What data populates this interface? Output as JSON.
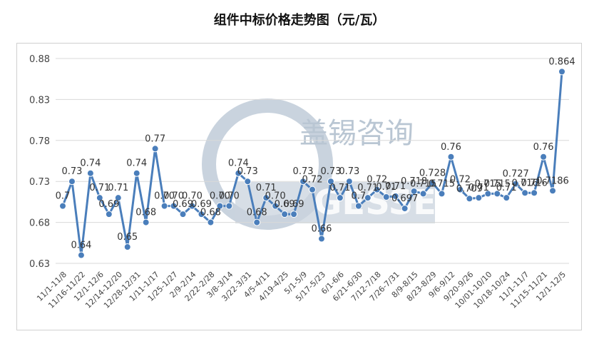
{
  "chart_data": {
    "type": "line",
    "title": "组件中标价格走势图（元/瓦）",
    "ylim": [
      0.63,
      0.88
    ],
    "yticks": [
      "0.63",
      "0.68",
      "0.73",
      "0.78",
      "0.83",
      "0.88"
    ],
    "color": "#4a7ebb",
    "grid": true,
    "legend": "none",
    "xtick_labels": [
      "11/1-11/8",
      "11/16-11/22",
      "12/1-12/6",
      "12/14-12/20",
      "12/28-12/31",
      "1/11-1/17",
      "1/25-1/27",
      "2/9-2/14",
      "2/22-2/28",
      "3/8-3/14",
      "3/22-3/31",
      "4/5-4/11",
      "4/19-4/25",
      "5/1-5/9",
      "5/17-5/23",
      "6/1-6/6",
      "6/21-6/30",
      "7/12-7/18",
      "7/26-7/31",
      "8/9-8/15",
      "8/23-8/29",
      "9/6-9/12",
      "9/20-9/26",
      "10/01-10/10",
      "10/18-10/24",
      "11/1-11/7",
      "11/15-11/21",
      "12/1-12/5"
    ],
    "values": [
      0.7,
      0.73,
      0.64,
      0.74,
      0.71,
      0.69,
      0.71,
      0.65,
      0.74,
      0.68,
      0.77,
      0.7,
      0.7,
      0.69,
      0.7,
      0.69,
      0.68,
      0.7,
      0.7,
      0.74,
      0.73,
      0.68,
      0.71,
      0.7,
      0.69,
      0.69,
      0.73,
      0.72,
      0.66,
      0.73,
      0.71,
      0.73,
      0.7,
      0.71,
      0.72,
      0.711,
      0.712,
      0.697,
      0.718,
      0.715,
      0.728,
      0.715,
      0.76,
      0.72,
      0.709,
      0.71,
      0.715,
      0.715,
      0.71,
      0.727,
      0.716,
      0.716,
      0.76,
      0.7186,
      0.864
    ],
    "data_labels": [
      "0.7",
      "0.73",
      "0.64",
      "0.74",
      "0.71",
      "0.69",
      "0.71",
      "0.65",
      "0.74",
      "0.68",
      "0.77",
      "0.70",
      "0.70",
      "0.69",
      "0.70",
      "0.69",
      "0.68",
      "0.70",
      "0.70",
      "0.74",
      "0.73",
      "0.68",
      "0.71",
      "0.70",
      "0.69",
      "0.69",
      "0.73",
      "0.72",
      "0.66",
      "0.73",
      "0.71",
      "0.73",
      "0.7",
      "0.71",
      "0.72",
      "0.71",
      "0.71",
      "0.697",
      "0.718",
      "0.715",
      "0.728",
      "0.715",
      "0.76",
      "0.72",
      "0.709",
      "0.71",
      "0.715",
      "0.715",
      "0.71",
      "0.727",
      "0.716",
      "0.716",
      "0.76",
      "0.7186",
      "0.864"
    ]
  },
  "watermark": {
    "text": "盖锡咨询",
    "letters": "GESSEY"
  }
}
